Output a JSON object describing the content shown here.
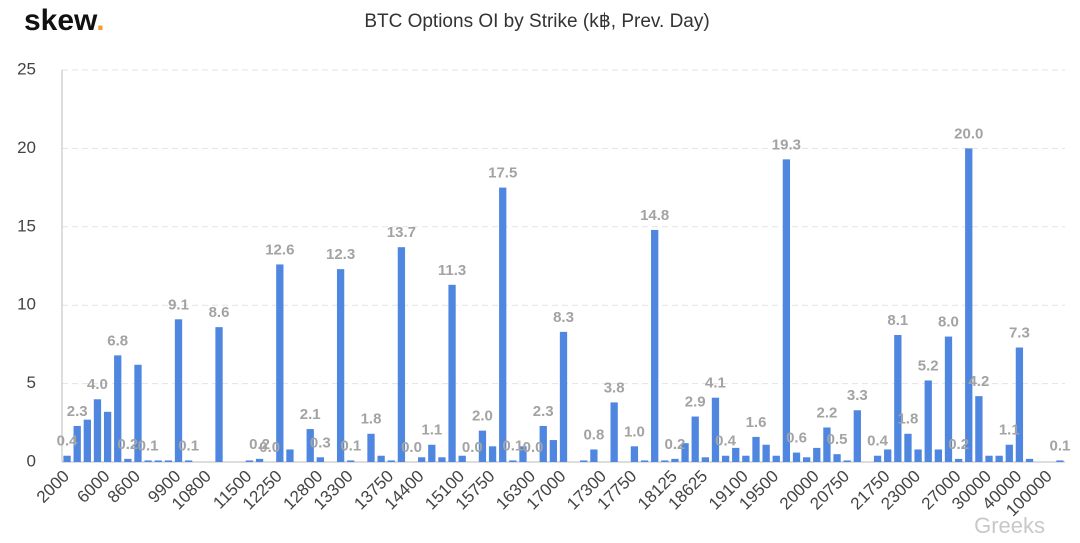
{
  "brand": "skew",
  "brand_dot": ".",
  "watermark": "Greeks",
  "chart_data": {
    "type": "bar",
    "title": "BTC Options OI by Strike (k฿, Prev. Day)",
    "categories": [
      "2000",
      null,
      null,
      null,
      "6000",
      null,
      null,
      "8600",
      null,
      null,
      null,
      "9900",
      null,
      null,
      "10800",
      null,
      null,
      null,
      "11500",
      null,
      null,
      "12250",
      null,
      null,
      null,
      "12800",
      null,
      null,
      "13300",
      null,
      null,
      null,
      "13750",
      null,
      null,
      "14400",
      null,
      null,
      null,
      "15100",
      null,
      null,
      "15750",
      null,
      null,
      null,
      "16300",
      null,
      null,
      "17000",
      null,
      null,
      null,
      "17300",
      null,
      null,
      "17750",
      null,
      null,
      null,
      "18125",
      null,
      null,
      "18625",
      null,
      null,
      null,
      "19100",
      null,
      null,
      "19500",
      null,
      null,
      null,
      "20000",
      null,
      null,
      "20750",
      null,
      null,
      null,
      "21750",
      null,
      null,
      "23000",
      null,
      null,
      null,
      "27000",
      null,
      null,
      "30000",
      null,
      null,
      "40000",
      null,
      null,
      "100000",
      null
    ],
    "values": [
      0.4,
      2.3,
      2.7,
      4.0,
      3.2,
      6.8,
      0.2,
      6.2,
      0.1,
      0.1,
      0.1,
      9.1,
      0.1,
      0.0,
      0.0,
      8.6,
      0.0,
      0.0,
      0.1,
      0.2,
      0.0,
      12.6,
      0.8,
      0.0,
      2.1,
      0.3,
      0.0,
      12.3,
      0.1,
      0.0,
      1.8,
      0.4,
      0.1,
      13.7,
      0.0,
      0.3,
      1.1,
      0.3,
      11.3,
      0.4,
      0.0,
      2.0,
      1.0,
      17.5,
      0.1,
      1.0,
      0.0,
      2.3,
      1.4,
      8.3,
      0.0,
      0.1,
      0.8,
      0.0,
      3.8,
      0.0,
      1.0,
      0.1,
      14.8,
      0.1,
      0.2,
      1.2,
      2.9,
      0.3,
      4.1,
      0.4,
      0.9,
      0.4,
      1.6,
      1.1,
      0.4,
      19.3,
      0.6,
      0.3,
      0.9,
      2.2,
      0.5,
      0.1,
      3.3,
      0.0,
      0.4,
      0.8,
      8.1,
      1.8,
      0.8,
      5.2,
      0.8,
      8.0,
      0.2,
      20.0,
      4.2,
      0.4,
      0.4,
      1.1,
      7.3,
      0.2,
      0.0,
      0.0,
      0.1
    ],
    "value_labels": [
      "0.4",
      "2.3",
      null,
      "4.0",
      null,
      "6.8",
      "0.2",
      null,
      "0.1",
      null,
      null,
      "9.1",
      "0.1",
      null,
      null,
      "8.6",
      null,
      null,
      null,
      "0.2",
      "0.0",
      "12.6",
      null,
      null,
      "2.1",
      "0.3",
      null,
      "12.3",
      "0.1",
      null,
      "1.8",
      null,
      null,
      "13.7",
      "0.0",
      null,
      "1.1",
      null,
      "11.3",
      null,
      "0.0",
      "2.0",
      null,
      "17.5",
      "0.1",
      null,
      "0.0",
      "2.3",
      null,
      "8.3",
      null,
      null,
      "0.8",
      null,
      "3.8",
      null,
      "1.0",
      null,
      "14.8",
      null,
      "0.2",
      null,
      "2.9",
      null,
      "4.1",
      "0.4",
      null,
      null,
      "1.6",
      null,
      null,
      "19.3",
      "0.6",
      null,
      null,
      "2.2",
      "0.5",
      null,
      "3.3",
      null,
      "0.4",
      null,
      "8.1",
      "1.8",
      null,
      "5.2",
      null,
      "8.0",
      "0.2",
      "20.0",
      "4.2",
      null,
      null,
      "1.1",
      "7.3",
      null,
      null,
      null,
      "0.1"
    ],
    "color": "#4f86df",
    "ylim": [
      0,
      25
    ],
    "yticks": [
      0,
      5,
      10,
      15,
      20,
      25
    ],
    "grid": true
  }
}
